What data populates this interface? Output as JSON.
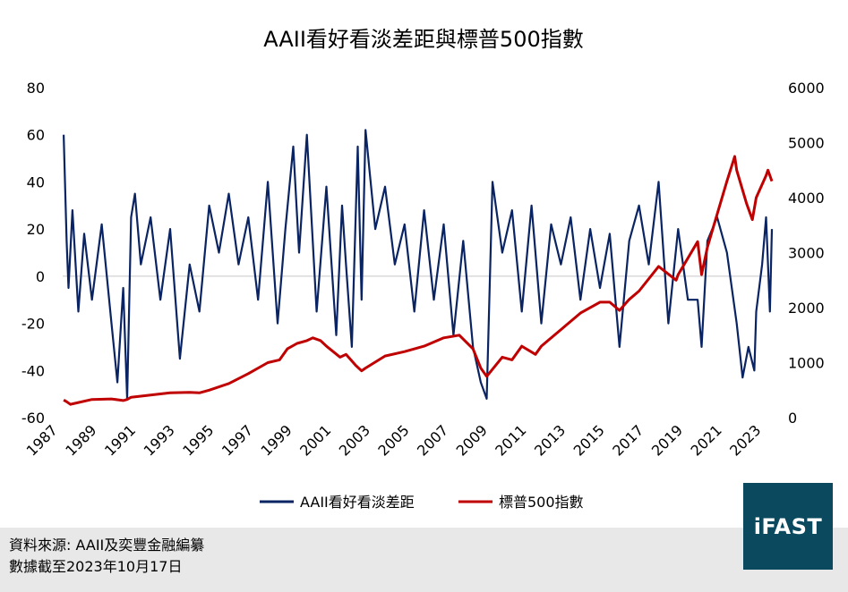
{
  "chart_data": {
    "type": "line",
    "title": "AAII看好看淡差距與標普500指數",
    "x_range": [
      1987.5,
      2023.8
    ],
    "x_ticks": [
      "1987",
      "1989",
      "1991",
      "1993",
      "1995",
      "1997",
      "1999",
      "2001",
      "2003",
      "2005",
      "2007",
      "2009",
      "2011",
      "2013",
      "2015",
      "2017",
      "2019",
      "2021",
      "2023"
    ],
    "y_left": {
      "range": [
        -60,
        80
      ],
      "ticks": [
        "80",
        "60",
        "40",
        "20",
        "0",
        "-20",
        "-40",
        "-60"
      ]
    },
    "y_right": {
      "range": [
        0,
        6000
      ],
      "ticks": [
        "6000",
        "5000",
        "4000",
        "3000",
        "2000",
        "1000",
        "0"
      ]
    },
    "grid": false,
    "legend_position": "bottom",
    "series": [
      {
        "name": "AAII看好看淡差距",
        "axis": "left",
        "color": "#0a2463",
        "x": [
          1987.55,
          1987.7,
          1987.8,
          1988.0,
          1988.3,
          1988.6,
          1989.0,
          1989.5,
          1990.0,
          1990.3,
          1990.6,
          1990.8,
          1991.0,
          1991.2,
          1991.5,
          1992.0,
          1992.5,
          1993.0,
          1993.5,
          1994.0,
          1994.5,
          1995.0,
          1995.5,
          1996.0,
          1996.5,
          1997.0,
          1997.5,
          1998.0,
          1998.5,
          1998.9,
          1999.3,
          1999.6,
          2000.0,
          2000.5,
          2001.0,
          2001.5,
          2001.8,
          2002.0,
          2002.3,
          2002.6,
          2002.8,
          2003.0,
          2003.5,
          2004.0,
          2004.5,
          2005.0,
          2005.5,
          2006.0,
          2006.5,
          2007.0,
          2007.5,
          2008.0,
          2008.5,
          2008.9,
          2009.2,
          2009.5,
          2010.0,
          2010.5,
          2011.0,
          2011.5,
          2012.0,
          2012.5,
          2013.0,
          2013.5,
          2014.0,
          2014.5,
          2015.0,
          2015.5,
          2016.0,
          2016.5,
          2017.0,
          2017.5,
          2018.0,
          2018.5,
          2019.0,
          2019.5,
          2020.0,
          2020.2,
          2020.5,
          2021.0,
          2021.5,
          2022.0,
          2022.3,
          2022.6,
          2022.9,
          2023.0,
          2023.3,
          2023.5,
          2023.7,
          2023.8
        ],
        "values": [
          60,
          15,
          -5,
          28,
          -15,
          18,
          -10,
          22,
          -20,
          -45,
          -5,
          -52,
          25,
          35,
          5,
          25,
          -10,
          20,
          -35,
          5,
          -15,
          30,
          10,
          35,
          5,
          25,
          -10,
          40,
          -20,
          20,
          55,
          10,
          60,
          -15,
          38,
          -25,
          30,
          5,
          -30,
          55,
          -10,
          62,
          20,
          38,
          5,
          22,
          -15,
          28,
          -10,
          22,
          -25,
          15,
          -30,
          -45,
          -52,
          40,
          10,
          28,
          -15,
          30,
          -20,
          22,
          5,
          25,
          -10,
          20,
          -5,
          18,
          -30,
          15,
          30,
          5,
          40,
          -20,
          20,
          -10,
          -10,
          -30,
          15,
          25,
          10,
          -20,
          -43,
          -30,
          -40,
          -15,
          5,
          25,
          -15,
          20
        ]
      },
      {
        "name": "標普500指數",
        "axis": "right",
        "color": "#c00000",
        "x": [
          1987.55,
          1987.7,
          1987.9,
          1988.0,
          1989.0,
          1990.0,
          1990.6,
          1990.8,
          1991.0,
          1992.0,
          1993.0,
          1994.0,
          1994.5,
          1995.0,
          1996.0,
          1997.0,
          1998.0,
          1998.6,
          1999.0,
          1999.5,
          2000.0,
          2000.3,
          2000.7,
          2001.0,
          2001.7,
          2002.0,
          2002.5,
          2002.8,
          2003.0,
          2004.0,
          2005.0,
          2006.0,
          2007.0,
          2007.8,
          2008.5,
          2008.9,
          2009.2,
          2010.0,
          2010.5,
          2011.0,
          2011.7,
          2012.0,
          2013.0,
          2014.0,
          2015.0,
          2015.5,
          2016.0,
          2016.5,
          2017.0,
          2018.0,
          2018.9,
          2019.0,
          2020.0,
          2020.2,
          2020.5,
          2021.0,
          2021.5,
          2021.9,
          2022.0,
          2022.5,
          2022.8,
          2023.0,
          2023.5,
          2023.6,
          2023.8
        ],
        "values": [
          320,
          290,
          240,
          250,
          330,
          340,
          310,
          330,
          370,
          410,
          450,
          460,
          450,
          500,
          620,
          800,
          1000,
          1050,
          1250,
          1350,
          1400,
          1450,
          1400,
          1300,
          1100,
          1150,
          950,
          850,
          900,
          1120,
          1200,
          1300,
          1450,
          1500,
          1250,
          900,
          750,
          1100,
          1050,
          1300,
          1150,
          1300,
          1600,
          1900,
          2100,
          2100,
          1950,
          2150,
          2300,
          2750,
          2500,
          2600,
          3200,
          2600,
          3100,
          3700,
          4300,
          4750,
          4500,
          3900,
          3600,
          4000,
          4400,
          4500,
          4300
        ]
      }
    ]
  },
  "source_note": "資料來源: AAII及奕豐金融編纂",
  "date_note": "數據截至2023年10月17日",
  "logo_text": "iFAST"
}
